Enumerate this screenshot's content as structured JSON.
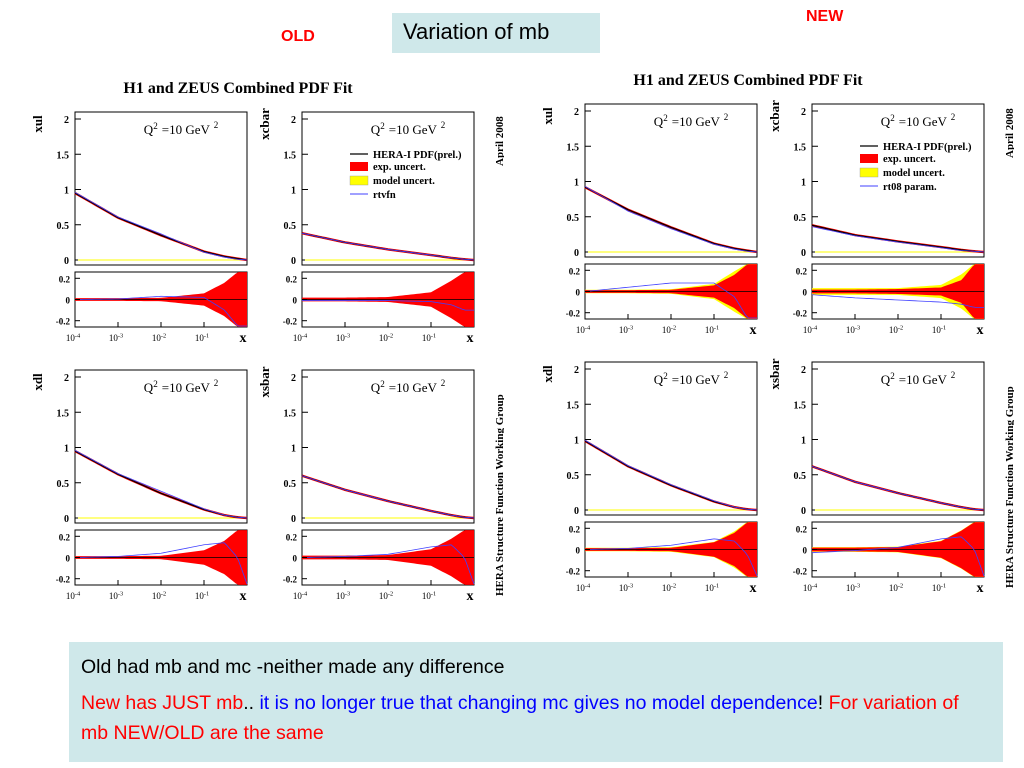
{
  "header": {
    "old_label": "OLD",
    "new_label": "NEW",
    "title": "Variation of mb"
  },
  "note": {
    "line1": "Old had mb and mc -neither made any difference",
    "line2_a": "New has JUST mb",
    "line2_b": "..",
    "line2_c": " it is no longer true that changing mc gives no model dependence",
    "line2_d": "!   ",
    "line2_e": "For variation of mb NEW/OLD are the same"
  },
  "colors": {
    "central": "#000000",
    "exp_uncert": "#ff0000",
    "model_uncert": "#ffff00",
    "variant": "#4040ff",
    "highlight_box": "#cfe8ea",
    "label_red": "#ff0000"
  },
  "chart_data": [
    {
      "type": "line",
      "figure_title": "H1 and ZEUS Combined PDF Fit",
      "side_label_top": "April 2008",
      "side_label_bottom": "HERA Structure Function Working Group",
      "legend_panel": "xcbar",
      "legend": [
        "HERA-I PDF(prel.)",
        "exp. uncert.",
        "model uncert.",
        "rtvfn"
      ],
      "x_log_range": [
        0.0001,
        1
      ],
      "x_tick_labels": [
        "10-4",
        "10-3",
        "10-2",
        "10-1"
      ],
      "xlabel": "x",
      "panels": [
        {
          "name": "xul",
          "ylabel": "xul",
          "annotation": "Q2 =10 GeV2",
          "ylim": [
            0,
            2
          ],
          "yticks": [
            "0",
            "0.5",
            "1",
            "1.5",
            "2"
          ],
          "x": [
            0.0001,
            0.001,
            0.01,
            0.1,
            0.3,
            0.6,
            1
          ],
          "central": [
            0.95,
            0.6,
            0.35,
            0.12,
            0.05,
            0.02,
            0.0
          ],
          "variant": [
            0.96,
            0.61,
            0.37,
            0.11,
            0.04,
            0.01,
            0.0
          ],
          "ratio": {
            "ylim": [
              -0.25,
              0.25
            ],
            "exp_band": [
              0.005,
              0.005,
              0.008,
              0.05,
              0.15,
              0.25,
              0.25
            ],
            "model_band": [
              0.0,
              0.0,
              0.0,
              0.0,
              0.0,
              0.0,
              0.0
            ],
            "variant": [
              0.0,
              0.005,
              0.03,
              0.02,
              -0.1,
              -0.25,
              -0.25
            ]
          }
        },
        {
          "name": "xcbar",
          "ylabel": "xcbar",
          "annotation": "Q2 =10 GeV2",
          "ylim": [
            0,
            2
          ],
          "yticks": [
            "0",
            "0.5",
            "1",
            "1.5",
            "2"
          ],
          "x": [
            0.0001,
            0.001,
            0.01,
            0.1,
            0.3,
            0.6,
            1
          ],
          "central": [
            0.38,
            0.25,
            0.15,
            0.07,
            0.03,
            0.01,
            0.0
          ],
          "variant": [
            0.38,
            0.25,
            0.15,
            0.07,
            0.03,
            0.01,
            0.0
          ],
          "ratio": {
            "ylim": [
              -0.25,
              0.25
            ],
            "exp_band": [
              0.01,
              0.01,
              0.015,
              0.06,
              0.17,
              0.25,
              0.25
            ],
            "model_band": [
              0.0,
              0.0,
              0.0,
              0.0,
              0.0,
              0.0,
              0.0
            ],
            "variant": [
              -0.01,
              -0.01,
              -0.01,
              -0.02,
              -0.05,
              -0.1,
              -0.1
            ]
          }
        },
        {
          "name": "xdl",
          "ylabel": "xdl",
          "annotation": "Q2 =10 GeV2",
          "ylim": [
            0,
            2
          ],
          "yticks": [
            "0",
            "0.5",
            "1",
            "1.5",
            "2"
          ],
          "x": [
            0.0001,
            0.001,
            0.01,
            0.1,
            0.3,
            0.6,
            1
          ],
          "central": [
            0.95,
            0.62,
            0.35,
            0.12,
            0.04,
            0.01,
            0.0
          ],
          "variant": [
            0.96,
            0.63,
            0.38,
            0.13,
            0.04,
            0.01,
            0.0
          ],
          "ratio": {
            "ylim": [
              -0.25,
              0.25
            ],
            "exp_band": [
              0.005,
              0.005,
              0.008,
              0.06,
              0.15,
              0.25,
              0.25
            ],
            "model_band": [
              0.0,
              0.0,
              0.0,
              0.0,
              0.0,
              0.0,
              0.0
            ],
            "variant": [
              0.0,
              0.01,
              0.04,
              0.12,
              0.14,
              0.0,
              -0.25
            ]
          }
        },
        {
          "name": "xsbar",
          "ylabel": "xsbar",
          "annotation": "Q2 =10 GeV2",
          "ylim": [
            0,
            2
          ],
          "yticks": [
            "0",
            "0.5",
            "1",
            "1.5",
            "2"
          ],
          "x": [
            0.0001,
            0.001,
            0.01,
            0.1,
            0.3,
            0.6,
            1
          ],
          "central": [
            0.6,
            0.4,
            0.24,
            0.1,
            0.04,
            0.01,
            0.0
          ],
          "variant": [
            0.6,
            0.4,
            0.24,
            0.1,
            0.04,
            0.01,
            0.0
          ],
          "ratio": {
            "ylim": [
              -0.25,
              0.25
            ],
            "exp_band": [
              0.01,
              0.01,
              0.015,
              0.07,
              0.17,
              0.25,
              0.25
            ],
            "model_band": [
              0.0,
              0.0,
              0.0,
              0.0,
              0.0,
              0.0,
              0.0
            ],
            "variant": [
              0.0,
              0.01,
              0.03,
              0.1,
              0.12,
              0.0,
              -0.25
            ]
          }
        }
      ]
    },
    {
      "type": "line",
      "figure_title": "H1 and ZEUS Combined PDF Fit",
      "side_label_top": "April 2008",
      "side_label_bottom": "HERA Structure Function Working Group",
      "legend_panel": "xcbar",
      "legend": [
        "HERA-I PDF(prel.)",
        "exp. uncert.",
        "model uncert.",
        "rt08 param."
      ],
      "x_log_range": [
        0.0001,
        1
      ],
      "x_tick_labels": [
        "10-4",
        "10-3",
        "10-2",
        "10-1"
      ],
      "xlabel": "x",
      "panels": [
        {
          "name": "xul",
          "ylabel": "xul",
          "annotation": "Q2 =10 GeV2",
          "ylim": [
            0,
            2
          ],
          "yticks": [
            "0",
            "0.5",
            "1",
            "1.5",
            "2"
          ],
          "x": [
            0.0001,
            0.001,
            0.01,
            0.1,
            0.3,
            0.6,
            1
          ],
          "central": [
            0.92,
            0.6,
            0.35,
            0.12,
            0.05,
            0.02,
            0.0
          ],
          "variant": [
            0.93,
            0.58,
            0.33,
            0.11,
            0.04,
            0.01,
            0.0
          ],
          "ratio": {
            "ylim": [
              -0.25,
              0.25
            ],
            "exp_band": [
              0.005,
              0.005,
              0.008,
              0.05,
              0.15,
              0.25,
              0.25
            ],
            "model_band": [
              0.005,
              0.005,
              0.01,
              0.06,
              0.18,
              0.25,
              0.25
            ],
            "variant": [
              0.0,
              0.04,
              0.08,
              0.08,
              -0.05,
              -0.25,
              -0.25
            ]
          }
        },
        {
          "name": "xcbar",
          "ylabel": "xcbar",
          "annotation": "Q2 =10 GeV2",
          "ylim": [
            0,
            2
          ],
          "yticks": [
            "0",
            "0.5",
            "1",
            "1.5",
            "2"
          ],
          "x": [
            0.0001,
            0.001,
            0.01,
            0.1,
            0.3,
            0.6,
            1
          ],
          "central": [
            0.38,
            0.24,
            0.15,
            0.07,
            0.03,
            0.01,
            0.0
          ],
          "variant": [
            0.36,
            0.23,
            0.14,
            0.06,
            0.02,
            0.01,
            0.0
          ],
          "ratio": {
            "ylim": [
              -0.25,
              0.25
            ],
            "exp_band": [
              0.01,
              0.01,
              0.015,
              0.03,
              0.1,
              0.25,
              0.25
            ],
            "model_band": [
              0.02,
              0.02,
              0.02,
              0.05,
              0.15,
              0.25,
              0.25
            ],
            "variant": [
              -0.03,
              -0.06,
              -0.08,
              -0.1,
              -0.12,
              -0.15,
              -0.15
            ]
          }
        },
        {
          "name": "xdl",
          "ylabel": "xdl",
          "annotation": "Q2 =10 GeV2",
          "ylim": [
            0,
            2
          ],
          "yticks": [
            "0",
            "0.5",
            "1",
            "1.5",
            "2"
          ],
          "x": [
            0.0001,
            0.001,
            0.01,
            0.1,
            0.3,
            0.6,
            1
          ],
          "central": [
            0.98,
            0.62,
            0.35,
            0.12,
            0.04,
            0.01,
            0.0
          ],
          "variant": [
            0.99,
            0.63,
            0.36,
            0.13,
            0.04,
            0.01,
            0.0
          ],
          "ratio": {
            "ylim": [
              -0.25,
              0.25
            ],
            "exp_band": [
              0.005,
              0.005,
              0.008,
              0.06,
              0.15,
              0.25,
              0.25
            ],
            "model_band": [
              0.005,
              0.005,
              0.01,
              0.06,
              0.16,
              0.25,
              0.25
            ],
            "variant": [
              0.0,
              0.01,
              0.04,
              0.1,
              0.08,
              -0.05,
              -0.25
            ]
          }
        },
        {
          "name": "xsbar",
          "ylabel": "xsbar",
          "annotation": "Q2 =10 GeV2",
          "ylim": [
            0,
            2
          ],
          "yticks": [
            "0",
            "0.5",
            "1",
            "1.5",
            "2"
          ],
          "x": [
            0.0001,
            0.001,
            0.01,
            0.1,
            0.3,
            0.6,
            1
          ],
          "central": [
            0.62,
            0.4,
            0.24,
            0.1,
            0.04,
            0.01,
            0.0
          ],
          "variant": [
            0.62,
            0.4,
            0.24,
            0.1,
            0.04,
            0.01,
            0.0
          ],
          "ratio": {
            "ylim": [
              -0.25,
              0.25
            ],
            "exp_band": [
              0.01,
              0.01,
              0.015,
              0.07,
              0.17,
              0.25,
              0.25
            ],
            "model_band": [
              0.01,
              0.01,
              0.015,
              0.07,
              0.17,
              0.25,
              0.25
            ],
            "variant": [
              -0.03,
              -0.01,
              0.02,
              0.1,
              0.12,
              0.0,
              -0.25
            ]
          }
        }
      ]
    }
  ]
}
